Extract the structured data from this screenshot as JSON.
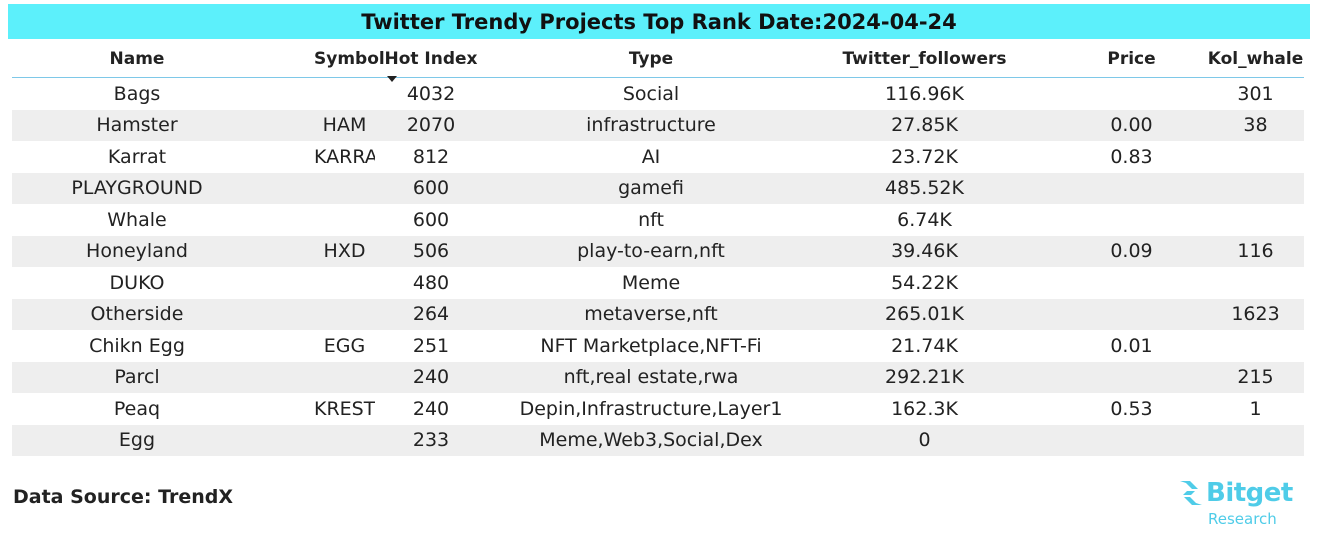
{
  "title": "Twitter Trendy Projects Top Rank Date:2024-04-24",
  "columns": [
    "Name",
    "Symbol",
    "Hot Index",
    "Type",
    "Twitter_followers",
    "Price",
    "Kol_whale"
  ],
  "rows": [
    [
      "Bags",
      "",
      "4032",
      "Social",
      "116.96K",
      "",
      "301"
    ],
    [
      "Hamster",
      "HAM",
      "2070",
      "infrastructure",
      "27.85K",
      "0.00",
      "38"
    ],
    [
      "Karrat",
      "KARRAT",
      "812",
      "AI",
      "23.72K",
      "0.83",
      ""
    ],
    [
      "PLAYGROUND",
      "",
      "600",
      "gamefi",
      "485.52K",
      "",
      ""
    ],
    [
      "Whale",
      "",
      "600",
      "nft",
      "6.74K",
      "",
      ""
    ],
    [
      "Honeyland",
      "HXD",
      "506",
      "play-to-earn,nft",
      "39.46K",
      "0.09",
      "116"
    ],
    [
      "DUKO",
      "",
      "480",
      "Meme",
      "54.22K",
      "",
      ""
    ],
    [
      "Otherside",
      "",
      "264",
      "metaverse,nft",
      "265.01K",
      "",
      "1623"
    ],
    [
      "Chikn Egg",
      "EGG",
      "251",
      "NFT Marketplace,NFT-Fi",
      "21.74K",
      "0.01",
      ""
    ],
    [
      "Parcl",
      "",
      "240",
      "nft,real estate,rwa",
      "292.21K",
      "",
      "215"
    ],
    [
      "Peaq",
      "KREST",
      "240",
      "Depin,Infrastructure,Layer1",
      "162.3K",
      "0.53",
      "1"
    ],
    [
      "Egg",
      "",
      "233",
      "Meme,Web3,Social,Dex",
      "0",
      "",
      ""
    ]
  ],
  "sort": {
    "column": "Hot Index",
    "direction": "descending",
    "icon": "sort-down-icon"
  },
  "footer": {
    "source": "Data Source: TrendX"
  },
  "logo": {
    "name": "Bitget",
    "subtitle": "Research",
    "color": "#4fcce8"
  },
  "colors": {
    "title_bg": "#5cf0fb",
    "row_alt_bg": "#eeeeee",
    "header_rule": "#7ec8e8"
  }
}
